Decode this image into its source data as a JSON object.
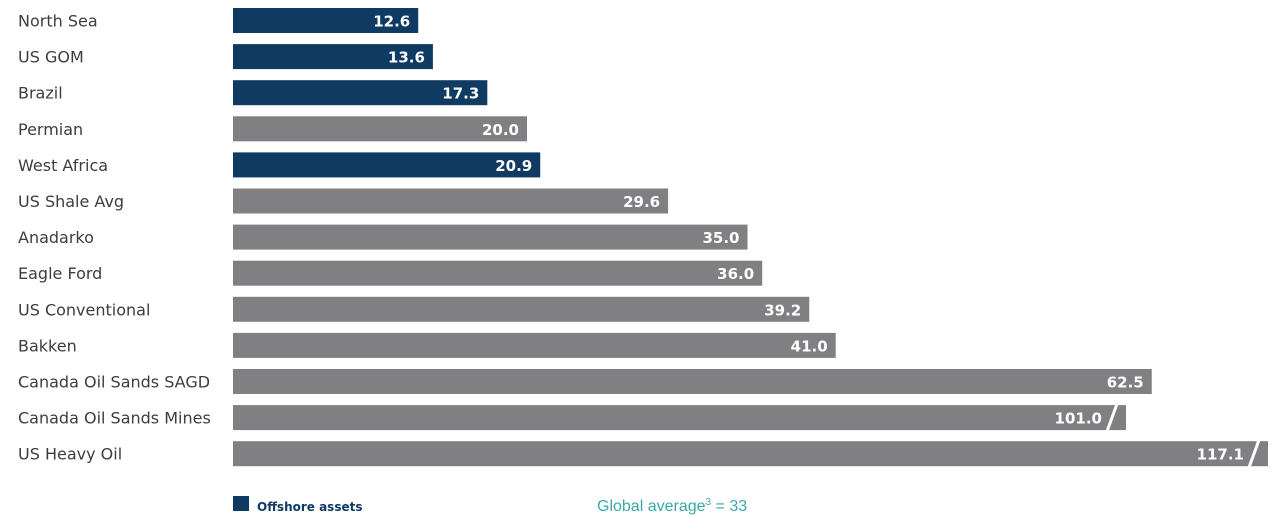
{
  "chart_data": {
    "type": "bar",
    "orientation": "horizontal",
    "categories": [
      "North Sea",
      "US GOM",
      "Brazil",
      "Permian",
      "West Africa",
      "US Shale Avg",
      "Anadarko",
      "Eagle Ford",
      "US Conventional",
      "Bakken",
      "Canada Oil Sands SAGD",
      "Canada Oil Sands Mines",
      "US Heavy Oil"
    ],
    "values": [
      12.6,
      13.6,
      17.3,
      20.0,
      20.9,
      29.6,
      35.0,
      36.0,
      39.2,
      41.0,
      62.5,
      101.0,
      117.1
    ],
    "value_labels": [
      "12.6",
      "13.6",
      "17.3",
      "20.0",
      "20.9",
      "29.6",
      "35.0",
      "36.0",
      "39.2",
      "41.0",
      "62.5",
      "101.0",
      "117.1"
    ],
    "offshore": [
      true,
      true,
      true,
      false,
      true,
      false,
      false,
      false,
      false,
      false,
      false,
      false,
      false
    ],
    "broken_axis": [
      false,
      false,
      false,
      false,
      false,
      false,
      false,
      false,
      false,
      false,
      false,
      true,
      true
    ],
    "colors": {
      "offshore": "#0f3a62",
      "onshore": "#808083",
      "average_text": "#3aa8a6",
      "break_mark": "#ffffff"
    },
    "legend": {
      "label": "Offshore assets",
      "placement": "bottom-left"
    },
    "annotation": {
      "prefix": "Global average",
      "superscript": "3",
      "suffix": " = 33"
    },
    "title": "",
    "xlabel": "",
    "ylabel": "",
    "grid": false
  }
}
